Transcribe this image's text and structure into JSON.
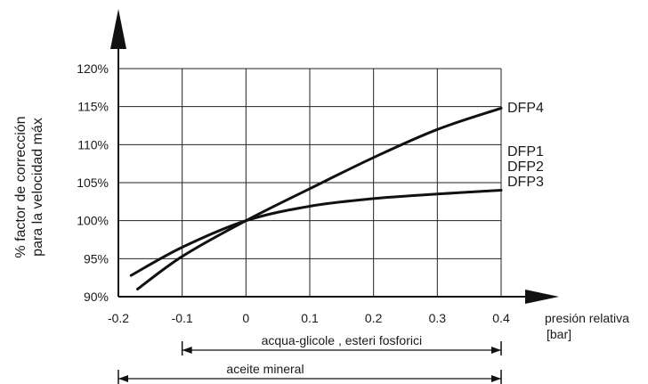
{
  "chart_data": {
    "type": "line",
    "xlabel": "presión relativa",
    "xlabel_unit": "[bar]",
    "ylabel_line1": "% factor de corrección",
    "ylabel_line2": "para la velocidad máx",
    "xlim": [
      -0.2,
      0.4
    ],
    "ylim": [
      90,
      120
    ],
    "grid": true,
    "x_ticks": [
      "-0.2",
      "-0.1",
      "0",
      "0.1",
      "0.2",
      "0.3",
      "0.4"
    ],
    "y_ticks": [
      "90%",
      "95%",
      "100%",
      "105%",
      "110%",
      "115%",
      "120%"
    ],
    "series": [
      {
        "name": "DFP4",
        "x": [
          -0.17,
          -0.1,
          0,
          0.1,
          0.2,
          0.3,
          0.4
        ],
        "y": [
          91.0,
          95.3,
          100.0,
          104.2,
          108.3,
          112.0,
          114.8
        ]
      },
      {
        "name": "DFP1 DFP2 DFP3",
        "x": [
          -0.18,
          -0.1,
          0,
          0.1,
          0.2,
          0.3,
          0.4
        ],
        "y": [
          92.8,
          96.5,
          100.0,
          101.9,
          102.9,
          103.5,
          104.0
        ]
      }
    ],
    "curve_labels": [
      "DFP4",
      "DFP1",
      "DFP2",
      "DFP3"
    ],
    "ranges": [
      {
        "label": "acqua-glicole ,  esteri fosforici",
        "from": -0.1,
        "to": 0.4
      },
      {
        "label": "aceite mineral",
        "from": -0.2,
        "to": 0.4
      }
    ]
  }
}
